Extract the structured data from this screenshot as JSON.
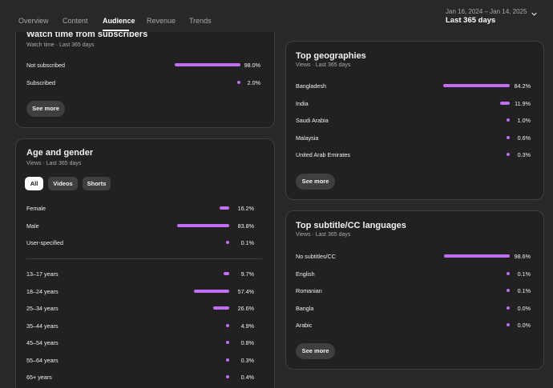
{
  "nav": {
    "tabs": [
      {
        "label": "Overview"
      },
      {
        "label": "Content"
      },
      {
        "label": "Audience"
      },
      {
        "label": "Revenue"
      },
      {
        "label": "Trends"
      }
    ],
    "date_range": "Jan 16, 2024 – Jan 14, 2025",
    "period": "Last 365 days"
  },
  "accent_color": "#c06ef2",
  "subscribers_card": {
    "title": "Watch time from subscribers",
    "subtitle": "Watch time · Last 365 days",
    "rows": [
      {
        "label": "Not subscribed",
        "value": "98.0%",
        "pct": 98.0
      },
      {
        "label": "Subscribed",
        "value": "2.0%",
        "pct": 2.0
      }
    ],
    "see_more": "See more"
  },
  "age_gender_card": {
    "title": "Age and gender",
    "subtitle": "Views · Last 365 days",
    "chips": [
      {
        "label": "All",
        "selected": true
      },
      {
        "label": "Videos",
        "selected": false
      },
      {
        "label": "Shorts",
        "selected": false
      }
    ],
    "gender_rows": [
      {
        "label": "Female",
        "value": "16.2%",
        "pct": 16.2
      },
      {
        "label": "Male",
        "value": "83.8%",
        "pct": 83.8
      },
      {
        "label": "User-specified",
        "value": "0.1%",
        "pct": 0.1
      }
    ],
    "age_rows": [
      {
        "label": "13–17 years",
        "value": "9.7%",
        "pct": 9.7
      },
      {
        "label": "18–24 years",
        "value": "57.4%",
        "pct": 57.4
      },
      {
        "label": "25–34 years",
        "value": "26.6%",
        "pct": 26.6
      },
      {
        "label": "35–44 years",
        "value": "4.9%",
        "pct": 4.9
      },
      {
        "label": "45–54 years",
        "value": "0.8%",
        "pct": 0.8
      },
      {
        "label": "55–64 years",
        "value": "0.3%",
        "pct": 0.3
      },
      {
        "label": "65+ years",
        "value": "0.4%",
        "pct": 0.4
      }
    ]
  },
  "geographies_card": {
    "title": "Top geographies",
    "subtitle": "Views · Last 365 days",
    "rows": [
      {
        "label": "Bangladesh",
        "value": "84.2%",
        "pct": 84.2
      },
      {
        "label": "India",
        "value": "11.9%",
        "pct": 11.9
      },
      {
        "label": "Saudi Arabia",
        "value": "1.0%",
        "pct": 1.0
      },
      {
        "label": "Malaysia",
        "value": "0.6%",
        "pct": 0.6
      },
      {
        "label": "United Arab Emirates",
        "value": "0.3%",
        "pct": 0.3
      }
    ],
    "see_more": "See more"
  },
  "subtitles_card": {
    "title": "Top subtitle/CC languages",
    "subtitle": "Views · Last 365 days",
    "rows": [
      {
        "label": "No subtitles/CC",
        "value": "98.6%",
        "pct": 98.6
      },
      {
        "label": "English",
        "value": "0.1%",
        "pct": 0.1
      },
      {
        "label": "Romanian",
        "value": "0.1%",
        "pct": 0.1
      },
      {
        "label": "Bangla",
        "value": "0.0%",
        "pct": 0.0
      },
      {
        "label": "Arabic",
        "value": "0.0%",
        "pct": 0.0
      }
    ],
    "see_more": "See more"
  }
}
